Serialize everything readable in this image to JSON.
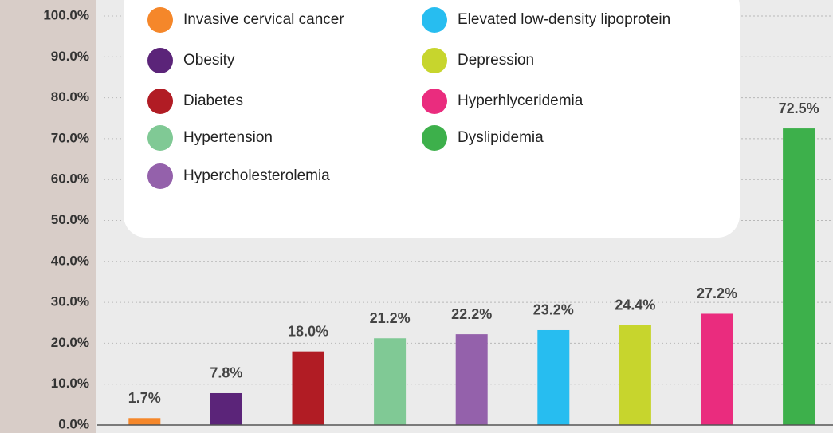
{
  "chart_data": {
    "type": "bar",
    "categories": [
      "Invasive cervical cancer",
      "Obesity",
      "Diabetes",
      "Hypertension",
      "Hypercholesterolemia",
      "Elevated low-density lipoprotein",
      "Depression",
      "Hyperhlyceridemia",
      "Dyslipidemia"
    ],
    "values": [
      1.7,
      7.8,
      18.0,
      21.2,
      22.2,
      23.2,
      24.4,
      27.2,
      72.5
    ],
    "value_labels": [
      "1.7%",
      "7.8%",
      "18.0%",
      "21.2%",
      "22.2%",
      "23.2%",
      "24.4%",
      "27.2%",
      "72.5%"
    ],
    "colors": [
      "#f5872a",
      "#5b2479",
      "#b11c24",
      "#80c995",
      "#9461ab",
      "#27bdf0",
      "#c7d52d",
      "#ea2c7e",
      "#3db04b"
    ],
    "ylim": [
      0,
      100
    ],
    "yticks": [
      {
        "value": 0,
        "label": "0.0%"
      },
      {
        "value": 10,
        "label": "10.0%"
      },
      {
        "value": 20,
        "label": "20.0%"
      },
      {
        "value": 30,
        "label": "30.0%"
      },
      {
        "value": 40,
        "label": "40.0%"
      },
      {
        "value": 50,
        "label": "50.0%"
      },
      {
        "value": 60,
        "label": "60.0%"
      },
      {
        "value": 70,
        "label": "70.0%"
      },
      {
        "value": 80,
        "label": "80.0%"
      },
      {
        "value": 90,
        "label": "90.0%"
      },
      {
        "value": 100,
        "label": "100.0%"
      }
    ],
    "grid": true
  }
}
